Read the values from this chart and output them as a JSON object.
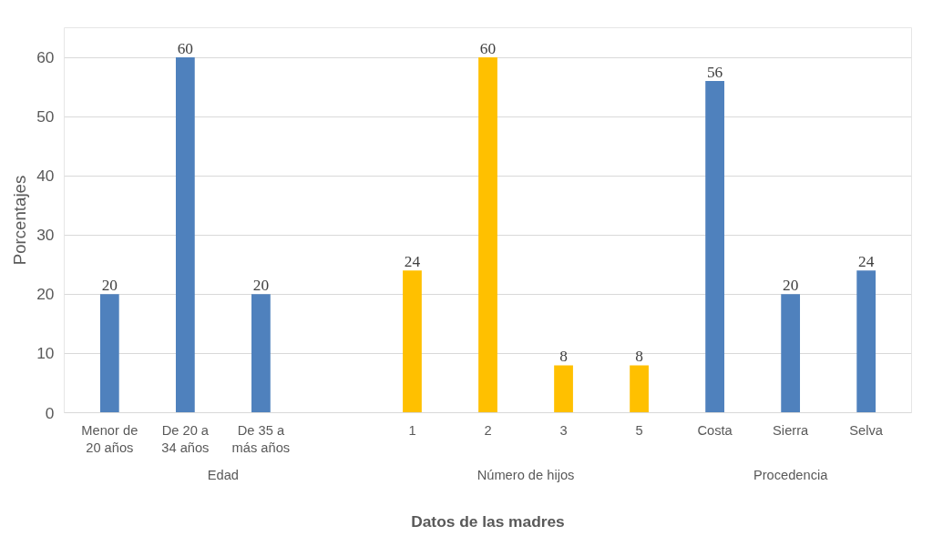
{
  "chart_data": {
    "type": "bar",
    "xlabel": "Datos de las madres",
    "ylabel": "Porcentajes",
    "categories": [
      "Menor de 20 años",
      "De 20 a 34 años",
      "De 35 a más años",
      null,
      "1",
      "2",
      "3",
      "5",
      "Costa",
      "Sierra",
      "Selva"
    ],
    "values": [
      20,
      60,
      20,
      null,
      24,
      60,
      8,
      8,
      56,
      20,
      24
    ],
    "colors": [
      "#4f81bd",
      "#4f81bd",
      "#4f81bd",
      "#4f81bd",
      "#ffc000",
      "#ffc000",
      "#ffc000",
      "#ffc000",
      "#4f81bd",
      "#4f81bd",
      "#4f81bd"
    ],
    "annotations": [
      "Edad",
      "Número de hijos",
      "Procedencia"
    ],
    "ylim": [
      0,
      65
    ],
    "yticks": [
      0,
      10,
      20,
      30,
      40,
      50,
      60
    ],
    "grid": "y",
    "data_labels": true
  }
}
